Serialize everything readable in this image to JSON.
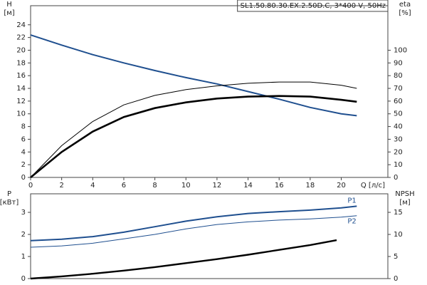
{
  "chart_data": [
    {
      "type": "line",
      "title": "SL1.50.80.30.EX.2.50D.C, 3*400 V, 50Hz",
      "ylabel": "H",
      "yunit": "[м]",
      "y2label": "eta",
      "y2unit": "[%]",
      "xlabel": "Q [л/с]",
      "xlim": [
        0,
        23
      ],
      "xticks": [
        0,
        2,
        4,
        6,
        8,
        10,
        12,
        14,
        16,
        18,
        20
      ],
      "ylim": [
        0,
        27
      ],
      "yticks": [
        0,
        2,
        4,
        6,
        8,
        10,
        12,
        14,
        16,
        18,
        20,
        22,
        24
      ],
      "y2lim": [
        0,
        135
      ],
      "y2ticks": [
        0,
        10,
        20,
        30,
        40,
        50,
        60,
        70,
        80,
        90,
        100
      ],
      "series": [
        {
          "color": "#1f4f8f",
          "line_width": 2,
          "x": [
            0,
            2,
            4,
            6,
            8,
            10,
            12,
            14,
            16,
            18,
            20,
            21
          ],
          "values": [
            22.4,
            20.8,
            19.3,
            18.0,
            16.8,
            15.7,
            14.7,
            13.5,
            12.3,
            11.0,
            10.0,
            9.7
          ]
        },
        {
          "color": "#000000",
          "line_width": 2.6,
          "axis": "y2",
          "x": [
            0,
            2,
            4,
            6,
            8,
            10,
            12,
            14,
            16,
            18,
            20,
            21
          ],
          "values": [
            0,
            20,
            36,
            47.5,
            54.5,
            59,
            62,
            63.5,
            64,
            63.5,
            61,
            59.5
          ]
        },
        {
          "color": "#000000",
          "line_width": 1,
          "axis": "y2",
          "x": [
            0,
            2,
            4,
            6,
            8,
            10,
            12,
            14,
            16,
            18,
            20,
            21
          ],
          "values": [
            0,
            25,
            44,
            57,
            64.5,
            69,
            72,
            74,
            75,
            75,
            72.5,
            70
          ]
        }
      ]
    },
    {
      "type": "line",
      "ylabel": "P",
      "yunit": "[кВт]",
      "y2label": "NPSH",
      "y2unit": "[м]",
      "xlim": [
        0,
        23
      ],
      "ylim": [
        0,
        3.84
      ],
      "yticks": [
        0,
        1,
        2,
        3
      ],
      "y2lim": [
        0,
        19.2
      ],
      "y2ticks": [
        0,
        5,
        10,
        15
      ],
      "series": [
        {
          "name": "P1",
          "color": "#1f4f8f",
          "line_width": 2,
          "x": [
            0,
            2,
            4,
            6,
            8,
            10,
            12,
            14,
            16,
            18,
            20,
            21
          ],
          "values": [
            1.72,
            1.78,
            1.9,
            2.1,
            2.35,
            2.6,
            2.8,
            2.95,
            3.03,
            3.1,
            3.2,
            3.28
          ]
        },
        {
          "name": "P2",
          "color": "#1f4f8f",
          "line_width": 1,
          "x": [
            0,
            2,
            4,
            6,
            8,
            10,
            12,
            14,
            16,
            18,
            20,
            21
          ],
          "values": [
            1.42,
            1.48,
            1.6,
            1.8,
            2.0,
            2.25,
            2.45,
            2.57,
            2.65,
            2.7,
            2.78,
            2.85
          ]
        },
        {
          "color": "#000000",
          "line_width": 2.4,
          "axis": "y2",
          "x": [
            0,
            2,
            4,
            6,
            8,
            10,
            12,
            14,
            16,
            18,
            19.7
          ],
          "values": [
            0,
            0.5,
            1.1,
            1.8,
            2.6,
            3.5,
            4.4,
            5.4,
            6.5,
            7.6,
            8.7
          ]
        }
      ]
    }
  ]
}
